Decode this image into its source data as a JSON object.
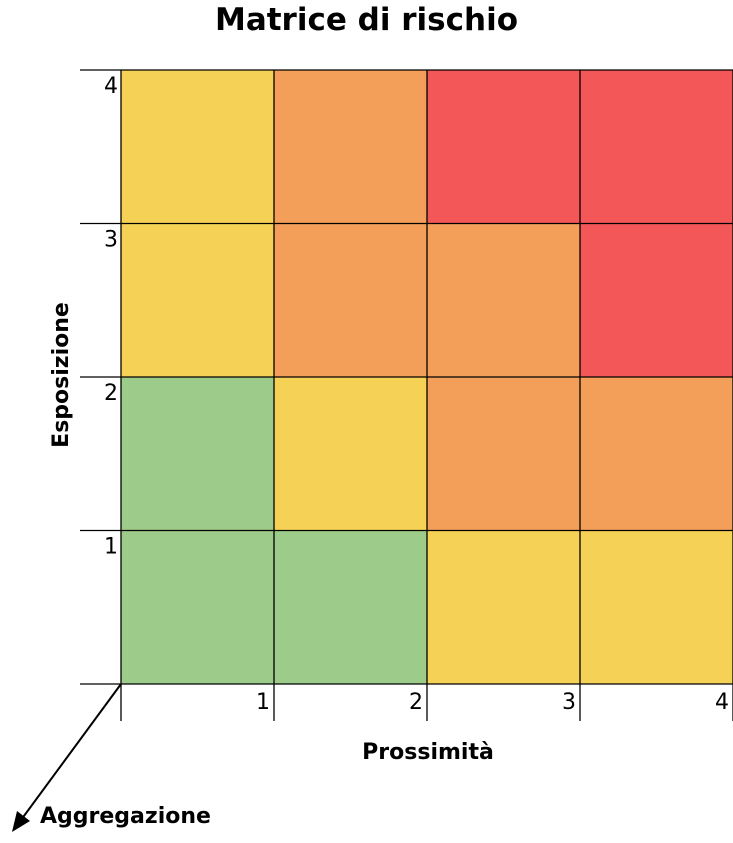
{
  "chart_data": {
    "type": "heatmap",
    "title": "Matrice di rischio",
    "xlabel": "Prossimità",
    "ylabel": "Esposizione",
    "zlabel": "Aggregazione",
    "x": [
      1,
      2,
      3,
      4
    ],
    "y": [
      1,
      2,
      3,
      4
    ],
    "x_tick_labels": [
      "1",
      "2",
      "3",
      "4"
    ],
    "y_tick_labels": [
      "1",
      "2",
      "3",
      "4"
    ],
    "levels": {
      "low": "#9dcb8a",
      "medium": "#f5d256",
      "high": "#f49f59",
      "very_high": "#f45757"
    },
    "cells": [
      [
        "low",
        "low",
        "medium",
        "medium"
      ],
      [
        "low",
        "medium",
        "high",
        "high"
      ],
      [
        "medium",
        "high",
        "high",
        "very_high"
      ],
      [
        "medium",
        "high",
        "very_high",
        "very_high"
      ]
    ],
    "grid": true
  }
}
